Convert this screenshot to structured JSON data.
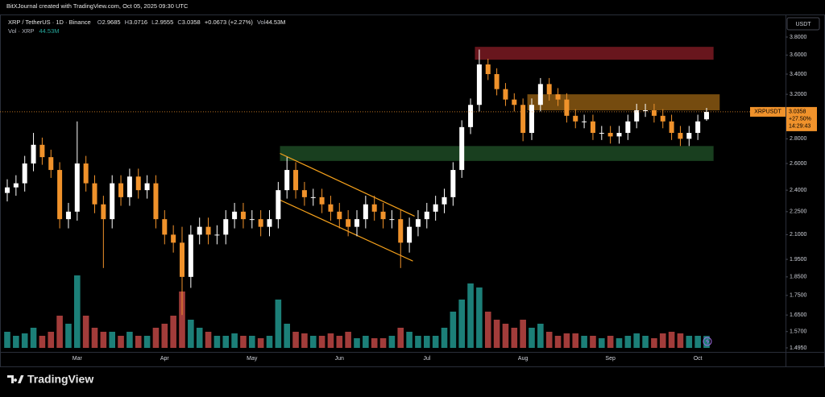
{
  "header": {
    "credit": "BitXJournal created with TradingView.com, Oct 05, 2025 09:30 UTC",
    "symbol": "XRP / TetherUS · 1D · Binance",
    "ohlc": [
      {
        "label": "O",
        "value": "2.9685"
      },
      {
        "label": "H",
        "value": "3.0716"
      },
      {
        "label": "L",
        "value": "2.9555"
      },
      {
        "label": "C",
        "value": "3.0358"
      }
    ],
    "change": "+0.0673 (+2.27%)",
    "vol_label": "Vol",
    "vol_value": "44.53M",
    "volume_legend": "Vol · XRP",
    "volume_value": "44.53M"
  },
  "currency": "USDT",
  "price_tag": {
    "symbol": "XRPUSDT",
    "price": "3.0358",
    "change": "+27.50%",
    "countdown": "14:29:43"
  },
  "brand": "TradingView",
  "chart_data": {
    "type": "candlestick",
    "log": true,
    "grid": false,
    "up_color": "#ffffff",
    "down_color": "#f0922b",
    "volume_up_color": "#1c7f78",
    "volume_down_color": "#a23c3a",
    "categories": [
      null,
      null,
      null,
      null,
      null,
      null,
      null,
      null,
      "Mar",
      null,
      null,
      null,
      null,
      null,
      null,
      null,
      null,
      null,
      "Apr",
      null,
      null,
      null,
      null,
      null,
      null,
      null,
      null,
      null,
      "May",
      null,
      null,
      null,
      null,
      null,
      null,
      null,
      null,
      null,
      "Jun",
      null,
      null,
      null,
      null,
      null,
      null,
      null,
      null,
      null,
      "Jul",
      null,
      null,
      null,
      null,
      null,
      null,
      null,
      null,
      null,
      null,
      "Aug",
      null,
      null,
      null,
      null,
      null,
      null,
      null,
      null,
      null,
      "Sep",
      null,
      null,
      null,
      null,
      null,
      null,
      null,
      null,
      null,
      "Oct",
      null
    ],
    "open": [
      2.38,
      2.42,
      2.45,
      2.6,
      2.75,
      2.65,
      2.55,
      2.2,
      2.25,
      2.6,
      2.45,
      2.3,
      2.2,
      2.45,
      2.35,
      2.5,
      2.4,
      2.45,
      2.2,
      2.1,
      2.05,
      1.85,
      2.1,
      2.15,
      2.1,
      2.1,
      2.2,
      2.25,
      2.2,
      2.2,
      2.15,
      2.2,
      2.4,
      2.55,
      2.4,
      2.35,
      2.35,
      2.3,
      2.25,
      2.2,
      2.15,
      2.2,
      2.3,
      2.25,
      2.2,
      2.2,
      2.05,
      2.15,
      2.2,
      2.25,
      2.3,
      2.35,
      2.55,
      2.9,
      3.1,
      3.5,
      3.4,
      3.25,
      3.15,
      3.1,
      2.85,
      3.1,
      3.3,
      3.2,
      3.15,
      3.0,
      2.95,
      2.95,
      2.85,
      2.85,
      2.82,
      2.85,
      2.95,
      3.05,
      3.05,
      3.0,
      2.95,
      2.85,
      2.8,
      2.85,
      2.9685
    ],
    "high": [
      2.48,
      2.51,
      2.66,
      2.85,
      2.81,
      2.71,
      2.61,
      2.31,
      2.95,
      2.66,
      2.51,
      2.36,
      2.51,
      2.51,
      2.56,
      2.56,
      2.51,
      2.51,
      2.26,
      2.16,
      2.15,
      2.16,
      2.21,
      2.21,
      2.16,
      2.26,
      2.31,
      2.31,
      2.26,
      2.26,
      2.26,
      2.46,
      2.65,
      2.61,
      2.46,
      2.41,
      2.41,
      2.36,
      2.31,
      2.26,
      2.26,
      2.36,
      2.36,
      2.31,
      2.26,
      2.26,
      2.21,
      2.26,
      2.31,
      2.36,
      2.41,
      2.61,
      2.96,
      3.16,
      3.66,
      3.56,
      3.46,
      3.31,
      3.21,
      3.16,
      3.16,
      3.36,
      3.36,
      3.26,
      3.21,
      3.06,
      3.01,
      3.01,
      2.91,
      2.91,
      2.91,
      3.01,
      3.11,
      3.11,
      3.11,
      3.06,
      3.01,
      2.91,
      2.91,
      3.01,
      3.0716
    ],
    "low": [
      2.32,
      2.36,
      2.39,
      2.54,
      2.59,
      2.49,
      2.14,
      2.14,
      2.19,
      2.39,
      2.24,
      1.9,
      2.14,
      2.29,
      2.29,
      2.34,
      2.34,
      2.14,
      2.04,
      1.99,
      1.65,
      1.79,
      2.04,
      2.04,
      2.04,
      2.04,
      2.14,
      2.14,
      2.14,
      2.09,
      2.09,
      2.14,
      2.34,
      2.34,
      2.29,
      2.29,
      2.24,
      2.19,
      2.14,
      2.09,
      2.09,
      2.14,
      2.19,
      2.14,
      2.14,
      1.9,
      1.99,
      2.09,
      2.14,
      2.19,
      2.24,
      2.29,
      2.49,
      2.84,
      3.04,
      3.34,
      3.19,
      3.09,
      3.04,
      2.78,
      2.79,
      3.04,
      3.14,
      3.09,
      2.94,
      2.89,
      2.89,
      2.79,
      2.79,
      2.76,
      2.76,
      2.79,
      2.89,
      2.99,
      2.94,
      2.89,
      2.79,
      2.74,
      2.74,
      2.79,
      2.9555
    ],
    "close": [
      2.42,
      2.45,
      2.6,
      2.75,
      2.65,
      2.55,
      2.2,
      2.25,
      2.6,
      2.45,
      2.3,
      2.2,
      2.45,
      2.35,
      2.5,
      2.4,
      2.45,
      2.2,
      2.1,
      2.05,
      1.85,
      2.1,
      2.15,
      2.1,
      2.1,
      2.2,
      2.25,
      2.2,
      2.2,
      2.15,
      2.2,
      2.4,
      2.55,
      2.4,
      2.35,
      2.35,
      2.3,
      2.25,
      2.2,
      2.15,
      2.2,
      2.3,
      2.25,
      2.2,
      2.2,
      2.05,
      2.15,
      2.2,
      2.25,
      2.3,
      2.35,
      2.55,
      2.9,
      3.1,
      3.5,
      3.4,
      3.25,
      3.15,
      3.1,
      2.85,
      3.1,
      3.3,
      3.2,
      3.15,
      3.0,
      2.95,
      2.95,
      2.85,
      2.85,
      2.82,
      2.85,
      2.95,
      3.05,
      3.05,
      3.0,
      2.95,
      2.85,
      2.8,
      2.85,
      2.95,
      3.0358
    ],
    "volume": [
      60,
      45,
      54,
      75,
      45,
      60,
      120,
      90,
      270,
      120,
      75,
      60,
      60,
      45,
      60,
      45,
      45,
      75,
      90,
      120,
      210,
      105,
      75,
      60,
      45,
      45,
      54,
      45,
      45,
      36,
      45,
      180,
      90,
      60,
      54,
      45,
      45,
      54,
      45,
      60,
      36,
      45,
      36,
      36,
      45,
      75,
      60,
      45,
      45,
      45,
      75,
      135,
      180,
      240,
      225,
      135,
      105,
      90,
      75,
      105,
      75,
      90,
      60,
      45,
      54,
      54,
      45,
      45,
      36,
      45,
      36,
      45,
      54,
      45,
      36,
      54,
      60,
      54,
      45,
      45,
      44.53
    ],
    "ylim": [
      1.495,
      3.8
    ],
    "yticks": [
      {
        "value": 3.8,
        "label": "3.8000"
      },
      {
        "value": 3.6,
        "label": "3.6000"
      },
      {
        "value": 3.4,
        "label": "3.4000"
      },
      {
        "value": 3.2,
        "label": "3.2000"
      },
      {
        "value": 2.8,
        "label": "2.8000"
      },
      {
        "value": 2.6,
        "label": "2.6000"
      },
      {
        "value": 2.4,
        "label": "2.4000"
      },
      {
        "value": 2.25,
        "label": "2.2500"
      },
      {
        "value": 2.1,
        "label": "2.1000"
      },
      {
        "value": 1.95,
        "label": "1.9500"
      },
      {
        "value": 1.85,
        "label": "1.8500"
      },
      {
        "value": 1.75,
        "label": "1.7500"
      },
      {
        "value": 1.65,
        "label": "1.6500"
      },
      {
        "value": 1.57,
        "label": "1.5700"
      },
      {
        "value": 1.495,
        "label": "1.4950"
      }
    ],
    "volume_ylim": [
      0,
      300
    ],
    "zones": [
      {
        "x0": 53.5,
        "x1": 80.8,
        "top": 3.69,
        "bottom": 3.55,
        "color": "#7a1a22"
      },
      {
        "x0": 59.5,
        "x1": 81.5,
        "top": 3.2,
        "bottom": 3.05,
        "color": "#8a5812"
      },
      {
        "x0": 31.2,
        "x1": 80.8,
        "top": 2.74,
        "bottom": 2.62,
        "color": "#1d4a24"
      }
    ],
    "channel_color": "#f7a21b",
    "channel": [
      {
        "x": [
          31.2,
          46.6
        ],
        "y": [
          2.68,
          2.22
        ]
      },
      {
        "x": [
          31.2,
          46.4
        ],
        "y": [
          2.33,
          1.94
        ]
      }
    ]
  }
}
